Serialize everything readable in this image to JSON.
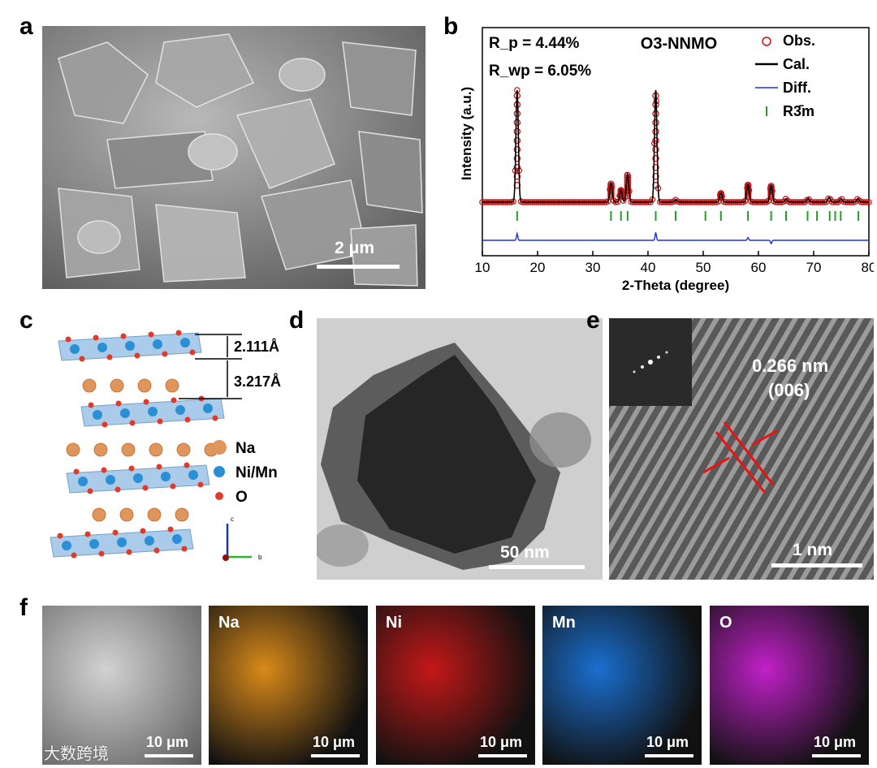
{
  "panels": {
    "a": {
      "letter": "a",
      "scalebar": "2 μm"
    },
    "b": {
      "letter": "b"
    },
    "c": {
      "letter": "c",
      "spacing_top": "2.111Å",
      "spacing_bottom": "3.217Å",
      "legend": [
        {
          "label": "Na",
          "color": "#e0955a"
        },
        {
          "label": "Ni/Mn",
          "color": "#2b8fd6"
        },
        {
          "label": "O",
          "color": "#e23a2a"
        }
      ],
      "axes": {
        "c": "c",
        "b": "b"
      }
    },
    "d": {
      "letter": "d",
      "scalebar": "50 nm"
    },
    "e": {
      "letter": "e",
      "d_spacing": "0.266 nm",
      "plane": "(006)",
      "scalebar": "1 nm"
    },
    "f": {
      "letter": "f",
      "maps": [
        {
          "label": "",
          "scalebar": "10 μm",
          "color": "#9a9a9a"
        },
        {
          "label": "Na",
          "scalebar": "10 μm",
          "color": "#d98a1a"
        },
        {
          "label": "Ni",
          "scalebar": "10 μm",
          "color": "#c41818"
        },
        {
          "label": "Mn",
          "scalebar": "10 μm",
          "color": "#1a6fd0"
        },
        {
          "label": "O",
          "scalebar": "10 μm",
          "color": "#c020c8"
        }
      ]
    }
  },
  "watermark": "大数跨境",
  "chart_data": {
    "type": "line",
    "title": "O3-NNMO",
    "annotations": [
      "R_p = 4.44%",
      "R_wp = 6.05%"
    ],
    "xlabel": "2-Theta (degree)",
    "ylabel": "Intensity (a.u.)",
    "xlim": [
      10,
      80
    ],
    "xticks": [
      "10",
      "20",
      "30",
      "40",
      "50",
      "60",
      "70",
      "80"
    ],
    "legend": [
      "Obs.",
      "Cal.",
      "Diff.",
      "R3̄m"
    ],
    "legend_position": "top-right",
    "colors": {
      "obs": "#cc1111",
      "cal": "#000000",
      "diff": "#1f2fe0",
      "bragg": "#22a022"
    },
    "peaks": [
      {
        "x": 16.3,
        "h": 1.0
      },
      {
        "x": 33.3,
        "h": 0.17
      },
      {
        "x": 35.1,
        "h": 0.11
      },
      {
        "x": 36.3,
        "h": 0.25
      },
      {
        "x": 41.4,
        "h": 1.0
      },
      {
        "x": 45.0,
        "h": 0.02
      },
      {
        "x": 53.2,
        "h": 0.08
      },
      {
        "x": 58.1,
        "h": 0.16
      },
      {
        "x": 62.3,
        "h": 0.15
      },
      {
        "x": 65.0,
        "h": 0.03
      },
      {
        "x": 69.0,
        "h": 0.03
      },
      {
        "x": 72.8,
        "h": 0.04
      },
      {
        "x": 75.0,
        "h": 0.03
      },
      {
        "x": 78.0,
        "h": 0.03
      }
    ],
    "bragg_positions": [
      16.3,
      33.3,
      35.1,
      36.3,
      41.4,
      45.0,
      50.4,
      53.2,
      58.1,
      62.3,
      65.0,
      68.9,
      70.6,
      72.9,
      73.9,
      74.9,
      78.1
    ],
    "diff_spikes": [
      {
        "x": 16.3,
        "d": 0.06
      },
      {
        "x": 41.4,
        "d": 0.07
      },
      {
        "x": 58.1,
        "d": 0.025
      },
      {
        "x": 62.3,
        "d": -0.03
      }
    ]
  }
}
